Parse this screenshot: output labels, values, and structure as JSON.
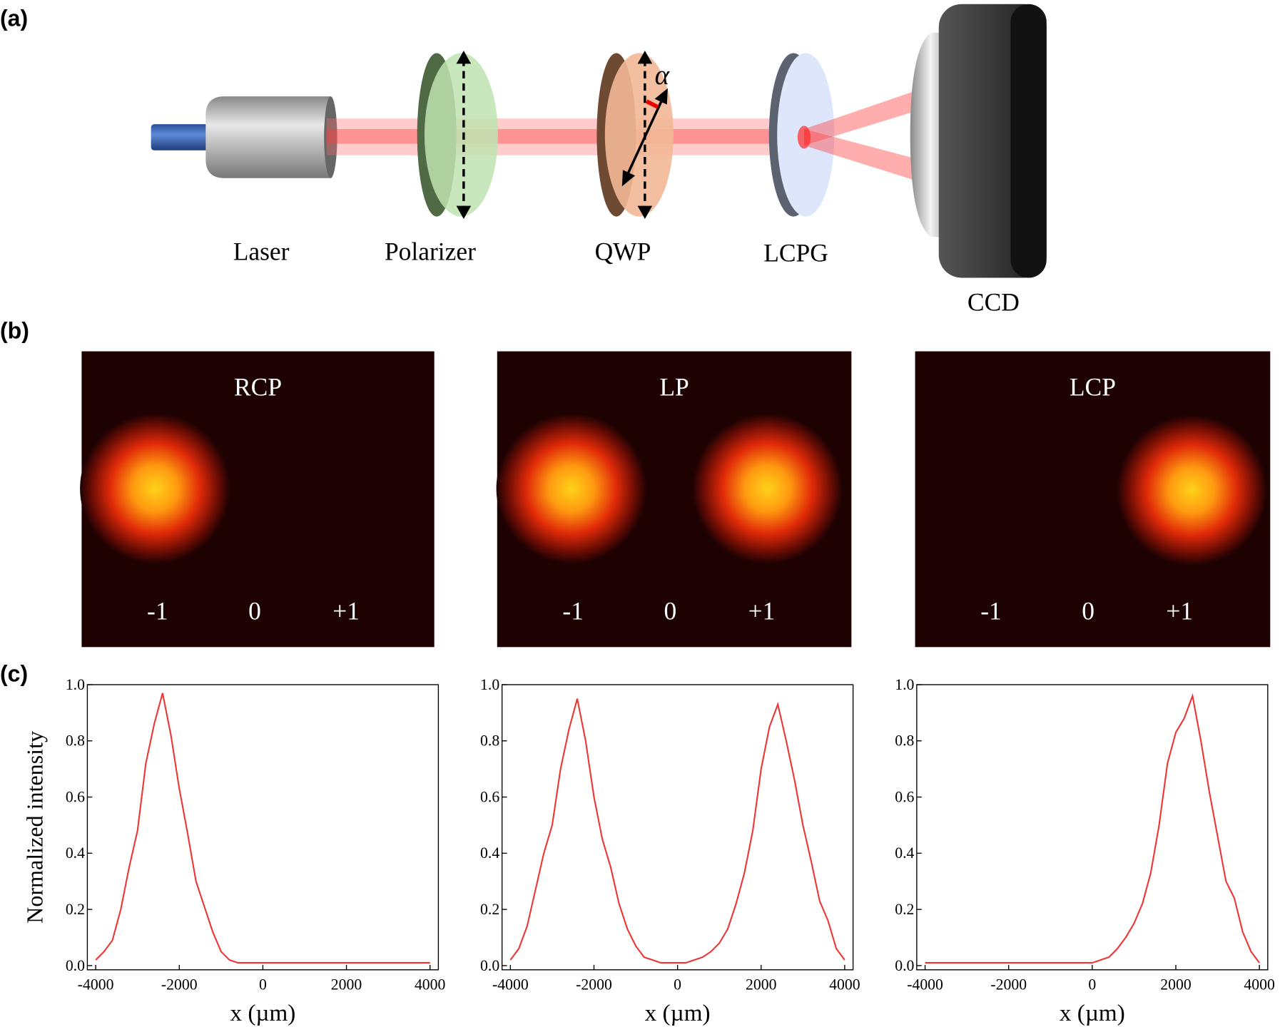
{
  "panels": [
    "(a)",
    "(b)",
    "(c)"
  ],
  "setup": {
    "labels": [
      "Laser",
      "Polarizer",
      "QWP",
      "LCPG",
      "CCD"
    ],
    "angle": "α"
  },
  "beam_images": [
    {
      "title": "RCP",
      "orders": [
        "-1",
        "0",
        "+1"
      ]
    },
    {
      "title": "LP",
      "orders": [
        "-1",
        "0",
        "+1"
      ]
    },
    {
      "title": "LCP",
      "orders": [
        "-1",
        "0",
        "+1"
      ]
    }
  ],
  "chart_data": [
    {
      "type": "line",
      "xlabel": "x (µm)",
      "ylabel": "Normalized intensity",
      "x": [
        -4000,
        -3800,
        -3600,
        -3400,
        -3200,
        -3000,
        -2800,
        -2600,
        -2400,
        -2200,
        -2000,
        -1800,
        -1600,
        -1400,
        -1200,
        -1000,
        -800,
        -600,
        -400,
        -200,
        0,
        200,
        400,
        600,
        800,
        1000,
        1200,
        1400,
        1600,
        1800,
        2000,
        2200,
        2400,
        2600,
        2800,
        3000,
        3200,
        3400,
        3600,
        3800,
        4000
      ],
      "series": [
        {
          "color": "#ee3333",
          "values": [
            0.02,
            0.05,
            0.09,
            0.2,
            0.35,
            0.48,
            0.72,
            0.86,
            0.97,
            0.82,
            0.63,
            0.47,
            0.3,
            0.21,
            0.12,
            0.05,
            0.02,
            0.01,
            0.01,
            0.01,
            0.01,
            0.01,
            0.01,
            0.01,
            0.01,
            0.01,
            0.01,
            0.01,
            0.01,
            0.01,
            0.01,
            0.01,
            0.01,
            0.01,
            0.01,
            0.01,
            0.01,
            0.01,
            0.01,
            0.01,
            0.01
          ]
        }
      ],
      "xlim": [
        -4200,
        4200
      ],
      "ylim": [
        -0.015,
        1.0
      ],
      "xticks": [
        -4000,
        -2000,
        0,
        2000,
        4000
      ],
      "yticks": [
        {
          "value": 0,
          "label": "0.0"
        },
        0.2,
        0.4,
        0.6,
        0.8,
        {
          "value": 1,
          "label": "1.0"
        }
      ]
    },
    {
      "type": "line",
      "xlabel": "x (µm)",
      "x": [
        -4000,
        -3800,
        -3600,
        -3400,
        -3200,
        -3000,
        -2800,
        -2600,
        -2400,
        -2200,
        -2000,
        -1800,
        -1600,
        -1400,
        -1200,
        -1000,
        -800,
        -600,
        -400,
        -200,
        0,
        200,
        400,
        600,
        800,
        1000,
        1200,
        1400,
        1600,
        1800,
        2000,
        2200,
        2400,
        2600,
        2800,
        3000,
        3200,
        3400,
        3600,
        3800,
        4000
      ],
      "series": [
        {
          "color": "#ee3333",
          "values": [
            0.02,
            0.06,
            0.14,
            0.27,
            0.4,
            0.5,
            0.7,
            0.84,
            0.95,
            0.8,
            0.6,
            0.45,
            0.35,
            0.22,
            0.13,
            0.07,
            0.03,
            0.02,
            0.01,
            0.01,
            0.01,
            0.01,
            0.02,
            0.03,
            0.05,
            0.08,
            0.13,
            0.22,
            0.33,
            0.48,
            0.7,
            0.85,
            0.93,
            0.8,
            0.66,
            0.5,
            0.37,
            0.23,
            0.16,
            0.06,
            0.02
          ]
        }
      ],
      "xlim": [
        -4200,
        4200
      ],
      "ylim": [
        -0.015,
        1.0
      ],
      "xticks": [
        -4000,
        -2000,
        0,
        2000,
        4000
      ],
      "yticks": [
        {
          "value": 0,
          "label": "0.0"
        },
        0.2,
        0.4,
        0.6,
        0.8,
        {
          "value": 1,
          "label": "1.0"
        }
      ]
    },
    {
      "type": "line",
      "xlabel": "x (µm)",
      "x": [
        -4000,
        -3800,
        -3600,
        -3400,
        -3200,
        -3000,
        -2800,
        -2600,
        -2400,
        -2200,
        -2000,
        -1800,
        -1600,
        -1400,
        -1200,
        -1000,
        -800,
        -600,
        -400,
        -200,
        0,
        200,
        400,
        600,
        800,
        1000,
        1200,
        1400,
        1600,
        1800,
        2000,
        2200,
        2400,
        2600,
        2800,
        3000,
        3200,
        3400,
        3600,
        3800,
        4000
      ],
      "series": [
        {
          "color": "#ee3333",
          "values": [
            0.01,
            0.01,
            0.01,
            0.01,
            0.01,
            0.01,
            0.01,
            0.01,
            0.01,
            0.01,
            0.01,
            0.01,
            0.01,
            0.01,
            0.01,
            0.01,
            0.01,
            0.01,
            0.01,
            0.01,
            0.01,
            0.02,
            0.03,
            0.06,
            0.1,
            0.15,
            0.22,
            0.33,
            0.5,
            0.72,
            0.83,
            0.88,
            0.96,
            0.8,
            0.62,
            0.46,
            0.3,
            0.24,
            0.12,
            0.05,
            0.01
          ]
        }
      ],
      "xlim": [
        -4200,
        4200
      ],
      "ylim": [
        -0.015,
        1.0
      ],
      "xticks": [
        -4000,
        -2000,
        0,
        2000,
        4000
      ],
      "yticks": [
        {
          "value": 0,
          "label": "0.0"
        },
        0.2,
        0.4,
        0.6,
        0.8,
        {
          "value": 1,
          "label": "1.0"
        }
      ]
    }
  ]
}
